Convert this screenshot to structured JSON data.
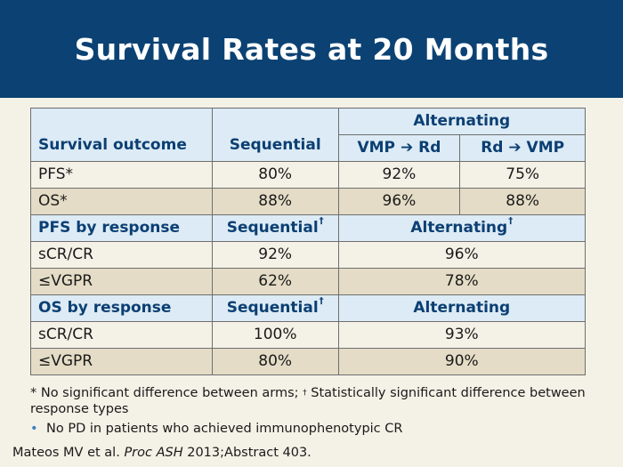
{
  "title": "Survival Rates at 20 Months",
  "table": {
    "header": {
      "outcome_label": "Survival outcome",
      "sequential_label": "Sequential",
      "alternating_label": "Alternating",
      "vmp_rd_left": "VMP",
      "vmp_rd_right": "Rd",
      "rd_vmp_left": "Rd",
      "rd_vmp_right": "VMP",
      "arrow_glyph": "➔"
    },
    "rows_outcome": [
      {
        "label": "PFS*",
        "sequential": "80%",
        "vmp_rd": "92%",
        "rd_vmp": "75%"
      },
      {
        "label": "OS*",
        "sequential": "88%",
        "vmp_rd": "96%",
        "rd_vmp": "88%"
      }
    ],
    "pfs_header": {
      "label": "PFS by response",
      "sequential": "Sequential",
      "alternating": "Alternating",
      "dagger": "†"
    },
    "rows_pfs": [
      {
        "label": "sCR/CR",
        "sequential": "92%",
        "alternating": "96%"
      },
      {
        "label": "≤VGPR",
        "sequential": "62%",
        "alternating": "78%"
      }
    ],
    "os_header": {
      "label": "OS by response",
      "sequential": "Sequential",
      "alternating": "Alternating",
      "dagger": "†"
    },
    "rows_os": [
      {
        "label": "sCR/CR",
        "sequential": "100%",
        "alternating": "93%"
      },
      {
        "label": "≤VGPR",
        "sequential": "80%",
        "alternating": "90%"
      }
    ]
  },
  "footnotes": {
    "star_symbol": "*",
    "star_text": " No significant difference between arms; ",
    "dagger_symbol": "†",
    "dagger_text": " Statistically significant difference between response types",
    "bullet_symbol": "•",
    "bullet_text": "No PD in patients who achieved immunophenotypic CR"
  },
  "citation": {
    "authors": "Mateos MV et al. ",
    "journal": "Proc ASH",
    "rest": " 2013;Abstract 403."
  },
  "colors": {
    "header_bg": "#0b4273",
    "table_header_bg": "#dcebf5",
    "table_header_text": "#0c3f73",
    "row_light": "#f4f1e6",
    "row_dark": "#e4dcc6"
  }
}
